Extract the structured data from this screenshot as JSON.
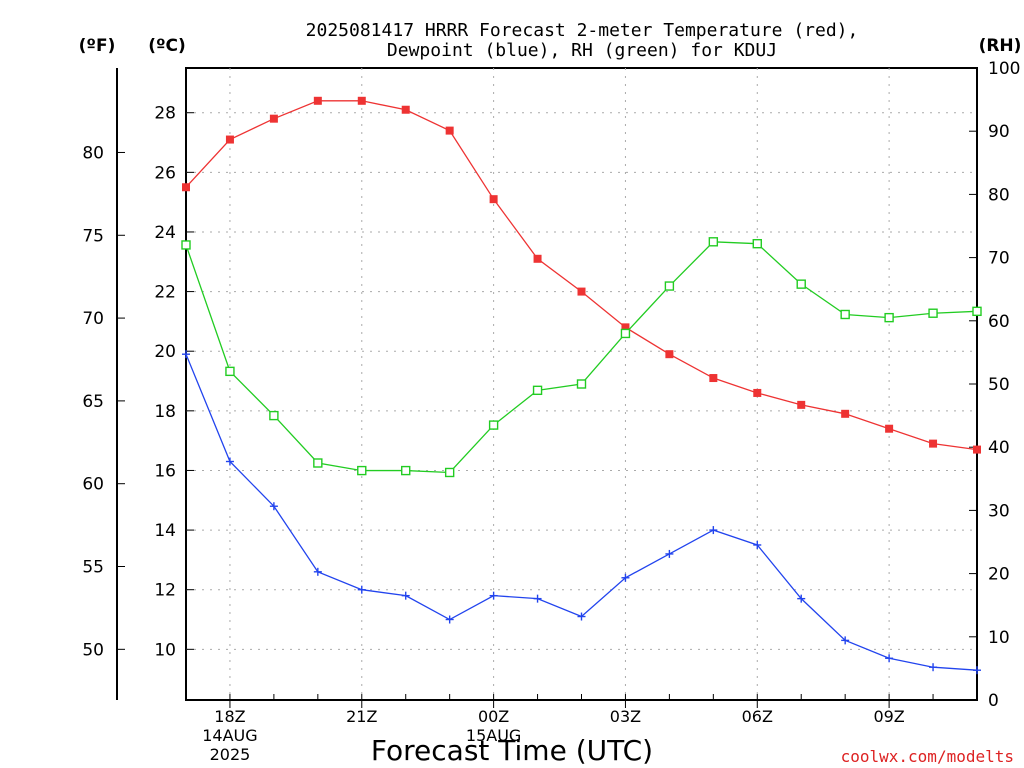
{
  "chart_data": {
    "type": "line",
    "title_line1": "2025081417 HRRR Forecast 2-meter Temperature (red),",
    "title_line2": "Dewpoint (blue), RH (green) for KDUJ",
    "xlabel": "Forecast Time (UTC)",
    "watermark": "coolwx.com/modelts",
    "left_unit_f": "(ºF)",
    "left_unit_c": "(ºC)",
    "right_unit": "(RH)",
    "x_hours_since_17Z": [
      0,
      1,
      2,
      3,
      4,
      5,
      6,
      7,
      8,
      9,
      10,
      11,
      12,
      13,
      14,
      15,
      16,
      17,
      18
    ],
    "x_tick_labels": [
      {
        "hour": 1,
        "lines": [
          "18Z",
          "14AUG",
          "2025"
        ]
      },
      {
        "hour": 4,
        "lines": [
          "21Z"
        ]
      },
      {
        "hour": 7,
        "lines": [
          "00Z",
          "15AUG"
        ]
      },
      {
        "hour": 10,
        "lines": [
          "03Z"
        ]
      },
      {
        "hour": 13,
        "lines": [
          "06Z"
        ]
      },
      {
        "hour": 16,
        "lines": [
          "09Z"
        ]
      }
    ],
    "celsius_axis": {
      "ylim": [
        8.3,
        29.5
      ],
      "ticks": [
        10,
        12,
        14,
        16,
        18,
        20,
        22,
        24,
        26,
        28
      ]
    },
    "fahrenheit_axis": {
      "ticks": [
        50,
        55,
        60,
        65,
        70,
        75,
        80
      ]
    },
    "rh_axis": {
      "ylim": [
        0,
        100
      ],
      "ticks": [
        0,
        10,
        20,
        30,
        40,
        50,
        60,
        70,
        80,
        90,
        100
      ]
    },
    "grid": true,
    "series": [
      {
        "name": "Temperature",
        "axis": "celsius",
        "color": "#ee3333",
        "marker": "filled-square",
        "values": [
          25.5,
          27.1,
          27.8,
          28.4,
          28.4,
          28.1,
          27.4,
          25.1,
          23.1,
          22.0,
          20.8,
          19.9,
          19.1,
          18.6,
          18.2,
          17.9,
          17.4,
          16.9,
          16.7
        ]
      },
      {
        "name": "Dewpoint",
        "axis": "celsius",
        "color": "#2244ee",
        "marker": "plus",
        "values": [
          19.9,
          16.3,
          14.8,
          12.6,
          12.0,
          11.8,
          11.0,
          11.8,
          11.7,
          11.1,
          12.4,
          13.2,
          14.0,
          13.5,
          11.7,
          10.3,
          9.7,
          9.4,
          9.3
        ]
      },
      {
        "name": "RH",
        "axis": "rh",
        "color": "#22cc22",
        "marker": "open-square",
        "values": [
          72,
          52,
          45,
          37.5,
          36.3,
          36.3,
          36,
          43.5,
          49,
          50,
          58,
          65.5,
          72.5,
          72.2,
          65.8,
          61,
          60.5,
          61.2,
          61.5
        ]
      }
    ]
  }
}
